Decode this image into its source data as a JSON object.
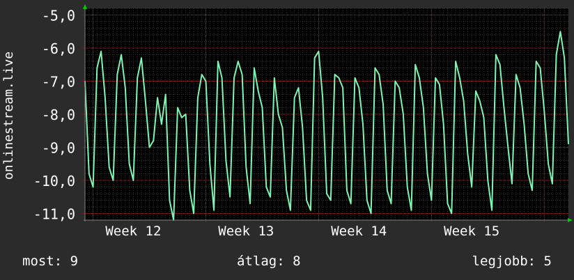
{
  "chart_data": {
    "type": "line",
    "ylabel": "onlinestream.live",
    "ylim": [
      -11.2,
      -4.8
    ],
    "y_ticks": [
      {
        "value": -5,
        "label": "-5,0"
      },
      {
        "value": -6,
        "label": "-6,0"
      },
      {
        "value": -7,
        "label": "-7,0"
      },
      {
        "value": -8,
        "label": "-8,0"
      },
      {
        "value": -9,
        "label": "-9,0"
      },
      {
        "value": -10,
        "label": "-10,0"
      },
      {
        "value": -11,
        "label": "-11,0"
      }
    ],
    "xlim": [
      0,
      30
    ],
    "x_ticks": [
      {
        "value": 3,
        "label": "Week 12"
      },
      {
        "value": 10,
        "label": "Week 13"
      },
      {
        "value": 17,
        "label": "Week 14"
      },
      {
        "value": 24,
        "label": "Week 15"
      }
    ],
    "grid": true,
    "line_color": "#7ff5b4",
    "series": [
      {
        "x": [
          0.0,
          0.25,
          0.5,
          0.75,
          1.0,
          1.25,
          1.5,
          1.75,
          2.0,
          2.25,
          2.5,
          2.75,
          3.0,
          3.25,
          3.5,
          3.75,
          4.0,
          4.25,
          4.5,
          4.75,
          5.0,
          5.25,
          5.5,
          5.75,
          6.0,
          6.25,
          6.5,
          6.75,
          7.0,
          7.25,
          7.5,
          7.75,
          8.0,
          8.25,
          8.5,
          8.75,
          9.0,
          9.25,
          9.5,
          9.75,
          10.0,
          10.25,
          10.5,
          10.75,
          11.0,
          11.25,
          11.5,
          11.75,
          12.0,
          12.25,
          12.5,
          12.75,
          13.0,
          13.25,
          13.5,
          13.75,
          14.0,
          14.25,
          14.5,
          14.75,
          15.0,
          15.25,
          15.5,
          15.75,
          16.0,
          16.25,
          16.5,
          16.75,
          17.0,
          17.25,
          17.5,
          17.75,
          18.0,
          18.25,
          18.5,
          18.75,
          19.0,
          19.25,
          19.5,
          19.75,
          20.0,
          20.25,
          20.5,
          20.75,
          21.0,
          21.25,
          21.5,
          21.75,
          22.0,
          22.25,
          22.5,
          22.75,
          23.0,
          23.25,
          23.5,
          23.75,
          24.0,
          24.25,
          24.5,
          24.75,
          25.0,
          25.25,
          25.5,
          25.75,
          26.0,
          26.25,
          26.5,
          26.75,
          27.0,
          27.25,
          27.5,
          27.75,
          28.0,
          28.25,
          28.5,
          28.75,
          29.0,
          29.25,
          29.5,
          29.75,
          30.0
        ],
        "y": [
          -7.0,
          -9.8,
          -10.2,
          -6.6,
          -6.1,
          -7.5,
          -9.6,
          -10.0,
          -6.8,
          -6.2,
          -7.2,
          -9.5,
          -10.0,
          -6.9,
          -6.3,
          -7.6,
          -9.0,
          -8.8,
          -7.5,
          -8.3,
          -7.4,
          -10.6,
          -11.2,
          -7.8,
          -8.1,
          -8.0,
          -10.3,
          -11.0,
          -7.5,
          -6.8,
          -7.0,
          -9.5,
          -10.9,
          -6.4,
          -6.9,
          -9.4,
          -10.5,
          -6.9,
          -6.4,
          -6.8,
          -9.6,
          -10.7,
          -6.6,
          -7.3,
          -7.8,
          -10.2,
          -10.5,
          -6.9,
          -8.0,
          -8.4,
          -10.3,
          -10.9,
          -7.5,
          -7.2,
          -8.4,
          -10.6,
          -10.9,
          -6.3,
          -6.1,
          -7.5,
          -10.4,
          -10.6,
          -6.8,
          -6.9,
          -7.2,
          -10.3,
          -10.7,
          -6.9,
          -7.2,
          -8.3,
          -10.6,
          -11.0,
          -6.6,
          -6.8,
          -7.7,
          -10.3,
          -10.7,
          -7.0,
          -7.2,
          -8.0,
          -10.2,
          -10.9,
          -6.5,
          -6.9,
          -7.8,
          -9.8,
          -10.6,
          -6.9,
          -7.1,
          -8.3,
          -10.7,
          -11.0,
          -6.4,
          -6.9,
          -7.6,
          -9.2,
          -10.2,
          -7.3,
          -7.6,
          -8.1,
          -10.0,
          -10.9,
          -6.2,
          -6.5,
          -7.8,
          -9.0,
          -10.1,
          -6.8,
          -7.2,
          -8.3,
          -9.8,
          -10.3,
          -6.4,
          -6.6,
          -7.9,
          -9.5,
          -10.1,
          -6.2,
          -5.5,
          -6.3,
          -8.9
        ]
      }
    ]
  },
  "footer": {
    "now_label": "most:",
    "now_value": "9",
    "avg_label": "átlag:",
    "avg_value": "8",
    "best_label": "legjobb:",
    "best_value": "5"
  }
}
